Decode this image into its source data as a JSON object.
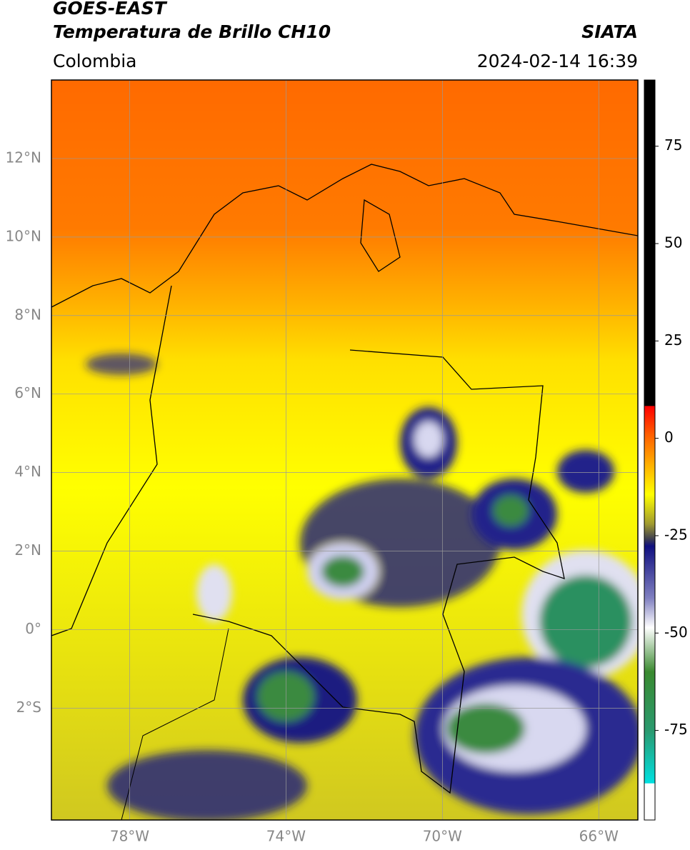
{
  "header": {
    "title": "GOES-EAST",
    "subtitle": "Temperatura de Brillo CH10",
    "source": "SIATA",
    "region": "Colombia",
    "timestamp": "2024-02-14 16:39"
  },
  "map": {
    "xlim": [
      -80,
      -65
    ],
    "ylim": [
      -4.85,
      14
    ],
    "xticks": [
      {
        "value": -78,
        "label": "78°W"
      },
      {
        "value": -74,
        "label": "74°W"
      },
      {
        "value": -70,
        "label": "70°W"
      },
      {
        "value": -66,
        "label": "66°W"
      }
    ],
    "yticks": [
      {
        "value": 12,
        "label": "12°N"
      },
      {
        "value": 10,
        "label": "10°N"
      },
      {
        "value": 8,
        "label": "8°N"
      },
      {
        "value": 6,
        "label": "6°N"
      },
      {
        "value": 4,
        "label": "4°N"
      },
      {
        "value": 2,
        "label": "2°N"
      },
      {
        "value": 0,
        "label": "0°"
      },
      {
        "value": -2,
        "label": "2°S"
      }
    ]
  },
  "colorbar": {
    "lim": [
      -98,
      92
    ],
    "ticks": [
      75,
      50,
      25,
      0,
      -25,
      -50,
      -75
    ]
  }
}
